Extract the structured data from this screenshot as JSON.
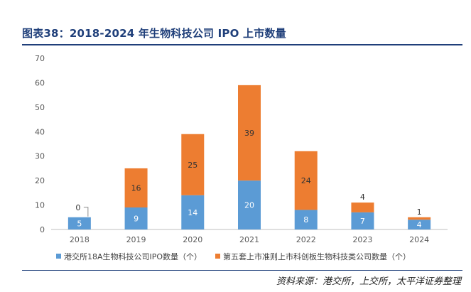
{
  "figure": {
    "title": "图表38：2018-2024 年生物科技公司 IPO 上市数量",
    "source": "资料来源：港交所，上交所，太平洋证券整理"
  },
  "chart_data": {
    "type": "bar",
    "stacked": true,
    "categories": [
      "2018",
      "2019",
      "2020",
      "2021",
      "2022",
      "2023",
      "2024"
    ],
    "series": [
      {
        "name": "港交所18A生物科技公司IPO数量（个）",
        "values": [
          5,
          9,
          14,
          20,
          8,
          7,
          4
        ],
        "color": "#5b9bd5"
      },
      {
        "name": "第五套上市准则上市科创板生物科技类公司数量（个）",
        "values": [
          0,
          16,
          25,
          39,
          24,
          4,
          1
        ],
        "color": "#ed7d31"
      }
    ],
    "ylim": [
      0,
      70
    ],
    "yticks": [
      0,
      10,
      20,
      30,
      40,
      50,
      60,
      70
    ],
    "grid": false,
    "legend": "bottom"
  }
}
